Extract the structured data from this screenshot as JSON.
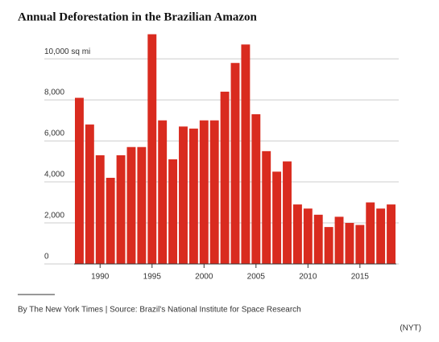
{
  "chart_data": {
    "type": "bar",
    "title": "Annual Deforestation in the Brazilian Amazon",
    "x": [
      1988,
      1989,
      1990,
      1991,
      1992,
      1993,
      1994,
      1995,
      1996,
      1997,
      1998,
      1999,
      2000,
      2001,
      2002,
      2003,
      2004,
      2005,
      2006,
      2007,
      2008,
      2009,
      2010,
      2011,
      2012,
      2013,
      2014,
      2015,
      2016,
      2017,
      2018
    ],
    "values": [
      8100,
      6800,
      5300,
      4200,
      5300,
      5700,
      5700,
      11200,
      7000,
      5100,
      6700,
      6600,
      7000,
      7000,
      8400,
      9800,
      10700,
      7300,
      5500,
      4500,
      5000,
      2900,
      2700,
      2400,
      1800,
      2300,
      2000,
      1900,
      3000,
      2700,
      2900
    ],
    "color": "#d92b1f",
    "xlim": [
      1987.5,
      2018.5
    ],
    "xticks": [
      1990,
      1995,
      2000,
      2005,
      2010,
      2015
    ],
    "ylim": [
      0,
      11300
    ],
    "yticks": [
      0,
      {
        "value": 2000,
        "label": "2,000"
      },
      {
        "value": 4000,
        "label": "4,000"
      },
      {
        "value": 6000,
        "label": "6,000"
      },
      {
        "value": 8000,
        "label": "8,000"
      },
      {
        "value": 10000,
        "label": "10,000 sq mi"
      }
    ],
    "grid": true,
    "source": "By The New York Times | Source: Brazil's National Institute for Space Research",
    "credit": "(NYT)"
  }
}
